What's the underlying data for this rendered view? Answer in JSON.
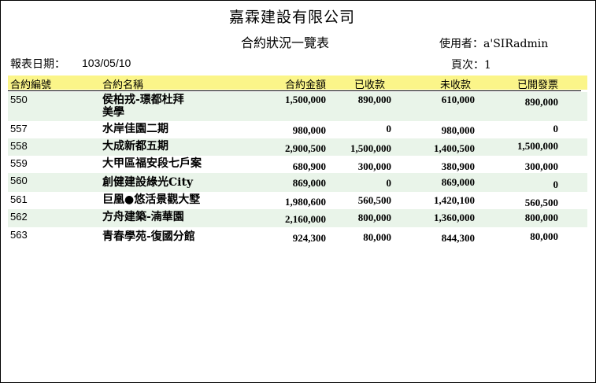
{
  "report": {
    "company": "嘉霖建設有限公司",
    "title": "合約狀況一覽表",
    "user": "使用者：a'SIRadmin",
    "date_label": "報表日期：",
    "date_value": "103/05/10",
    "page_label": "頁次：1"
  },
  "columns": {
    "id": "合約編號",
    "name": "合約名稱",
    "amount": "合約金額",
    "received": "已收款",
    "unreceived": "未收款",
    "invoiced": "已開發票"
  },
  "rows": [
    {
      "id": "550",
      "name1": "侯柏戎-璟都杜拜",
      "name2": "美學",
      "amount": "1,500,000",
      "received": "890,000",
      "unreceived": "610,000",
      "invoiced": "890,000"
    },
    {
      "id": "557",
      "name1": "水岸佳園二期",
      "name2": "",
      "amount": "980,000",
      "received": "0",
      "unreceived": "980,000",
      "invoiced": "0"
    },
    {
      "id": "558",
      "name1": "大成新都五期",
      "name2": "",
      "amount": "2,900,500",
      "received": "1,500,000",
      "unreceived": "1,400,500",
      "invoiced": "1,500,000"
    },
    {
      "id": "559",
      "name1": "大甲區福安段七戶案",
      "name2": "",
      "amount": "680,900",
      "received": "300,000",
      "unreceived": "380,900",
      "invoiced": "300,000"
    },
    {
      "id": "560",
      "name1": "創健建設綠光City",
      "name2": "",
      "amount": "869,000",
      "received": "0",
      "unreceived": "869,000",
      "invoiced": "0"
    },
    {
      "id": "561",
      "name1": "巨凰●悠活景觀大墅",
      "name2": "",
      "amount": "1,980,600",
      "received": "560,500",
      "unreceived": "1,420,100",
      "invoiced": "560,500"
    },
    {
      "id": "562",
      "name1": "方舟建築-湳華園",
      "name2": "",
      "amount": "2,160,000",
      "received": "800,000",
      "unreceived": "1,360,000",
      "invoiced": "800,000"
    },
    {
      "id": "563",
      "name1": "青春學苑-復國分館",
      "name2": "",
      "amount": "924,300",
      "received": "80,000",
      "unreceived": "844,300",
      "invoiced": "80,000"
    }
  ]
}
